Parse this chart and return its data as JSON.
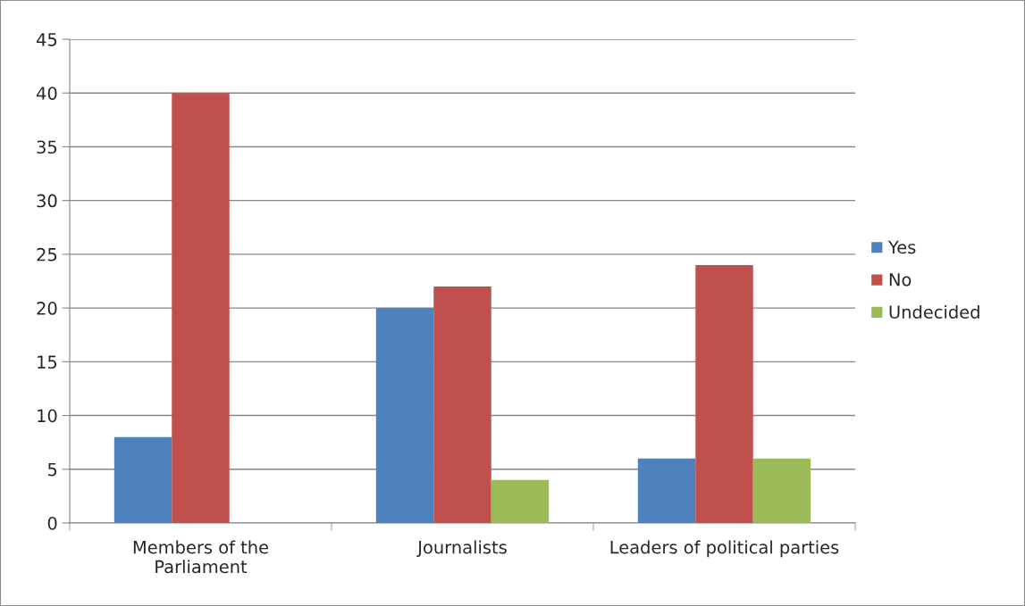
{
  "chart_data": {
    "type": "bar",
    "categories": [
      "Members of the\nParliament",
      "Journalists",
      "Leaders of political parties"
    ],
    "series": [
      {
        "name": "Yes",
        "color": "#4f81bd",
        "values": [
          8,
          20,
          6
        ]
      },
      {
        "name": "No",
        "color": "#c0504d",
        "values": [
          40,
          22,
          24
        ]
      },
      {
        "name": "Undecided",
        "color": "#9bbb59",
        "values": [
          0,
          4,
          6
        ]
      }
    ],
    "ylim": [
      0,
      45
    ],
    "yticks": [
      0,
      5,
      10,
      15,
      20,
      25,
      30,
      35,
      40,
      45
    ],
    "grid": "y",
    "legend": "right"
  }
}
